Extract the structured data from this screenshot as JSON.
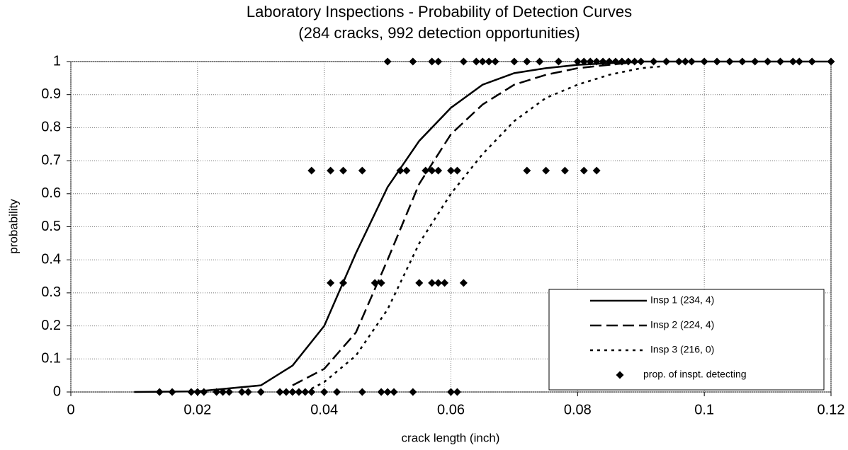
{
  "chart_data": {
    "type": "line",
    "title": "Laboratory Inspections - Probability of Detection Curves",
    "subtitle": "(284 cracks, 992 detection opportunities)",
    "x_label": "crack length (inch)",
    "y_label": "probability",
    "xlim": [
      0,
      0.12
    ],
    "xticks": [
      0,
      0.02,
      0.04,
      0.06,
      0.08,
      0.1,
      0.12
    ],
    "ylim": [
      0,
      1
    ],
    "yticks": [
      0,
      0.1,
      0.2,
      0.3,
      0.4,
      0.5,
      0.6,
      0.7,
      0.8,
      0.9,
      1
    ],
    "grid": true,
    "legend": "lower right",
    "series": [
      {
        "name": "Insp 1 (234, 4)",
        "type": "line",
        "color": "#000000",
        "dash": "solid",
        "x": [
          0.01,
          0.02,
          0.03,
          0.035,
          0.04,
          0.045,
          0.05,
          0.055,
          0.06,
          0.065,
          0.07,
          0.075,
          0.08,
          0.09,
          0.12
        ],
        "values": [
          0,
          0.002,
          0.02,
          0.08,
          0.2,
          0.42,
          0.62,
          0.76,
          0.86,
          0.93,
          0.965,
          0.98,
          0.99,
          1,
          1
        ]
      },
      {
        "name": "Insp 2 (224, 4)",
        "type": "line",
        "color": "#000000",
        "dash": "long",
        "x": [
          0.035,
          0.04,
          0.045,
          0.05,
          0.055,
          0.06,
          0.065,
          0.07,
          0.075,
          0.08,
          0.085,
          0.09
        ],
        "values": [
          0.02,
          0.07,
          0.18,
          0.4,
          0.63,
          0.78,
          0.87,
          0.93,
          0.96,
          0.98,
          0.99,
          1
        ]
      },
      {
        "name": "Insp 3 (216, 0)",
        "type": "line",
        "color": "#000000",
        "dash": "dotted",
        "x": [
          0.037,
          0.04,
          0.045,
          0.05,
          0.055,
          0.06,
          0.065,
          0.07,
          0.075,
          0.08,
          0.085,
          0.09,
          0.093
        ],
        "values": [
          0,
          0.03,
          0.11,
          0.25,
          0.45,
          0.6,
          0.72,
          0.82,
          0.89,
          0.93,
          0.96,
          0.98,
          0.985
        ]
      },
      {
        "name": "prop. of inspt. detecting",
        "type": "scatter",
        "color": "#000000",
        "x": [
          0.014,
          0.016,
          0.019,
          0.02,
          0.021,
          0.023,
          0.024,
          0.025,
          0.027,
          0.028,
          0.03,
          0.033,
          0.034,
          0.035,
          0.036,
          0.037,
          0.038,
          0.04,
          0.042,
          0.046,
          0.049,
          0.05,
          0.051,
          0.054,
          0.06,
          0.061,
          0.041,
          0.043,
          0.048,
          0.049,
          0.055,
          0.057,
          0.058,
          0.059,
          0.062,
          0.038,
          0.041,
          0.043,
          0.046,
          0.052,
          0.053,
          0.056,
          0.057,
          0.058,
          0.06,
          0.061,
          0.072,
          0.075,
          0.078,
          0.081,
          0.083,
          0.05,
          0.054,
          0.057,
          0.058,
          0.062,
          0.064,
          0.065,
          0.066,
          0.067,
          0.07,
          0.072,
          0.074,
          0.077,
          0.08,
          0.081,
          0.082,
          0.083,
          0.084,
          0.085,
          0.086,
          0.087,
          0.088,
          0.089,
          0.09,
          0.092,
          0.094,
          0.096,
          0.097,
          0.098,
          0.1,
          0.102,
          0.104,
          0.106,
          0.108,
          0.11,
          0.112,
          0.114,
          0.115,
          0.117,
          0.12
        ],
        "values": [
          0,
          0,
          0,
          0,
          0,
          0,
          0,
          0,
          0,
          0,
          0,
          0,
          0,
          0,
          0,
          0,
          0,
          0,
          0,
          0,
          0,
          0,
          0,
          0,
          0,
          0,
          0.33,
          0.33,
          0.33,
          0.33,
          0.33,
          0.33,
          0.33,
          0.33,
          0.33,
          0.67,
          0.67,
          0.67,
          0.67,
          0.67,
          0.67,
          0.67,
          0.67,
          0.67,
          0.67,
          0.67,
          0.67,
          0.67,
          0.67,
          0.67,
          0.67,
          1,
          1,
          1,
          1,
          1,
          1,
          1,
          1,
          1,
          1,
          1,
          1,
          1,
          1,
          1,
          1,
          1,
          1,
          1,
          1,
          1,
          1,
          1,
          1,
          1,
          1,
          1,
          1,
          1,
          1,
          1,
          1,
          1,
          1,
          1,
          1,
          1,
          1,
          1,
          1
        ]
      }
    ]
  }
}
